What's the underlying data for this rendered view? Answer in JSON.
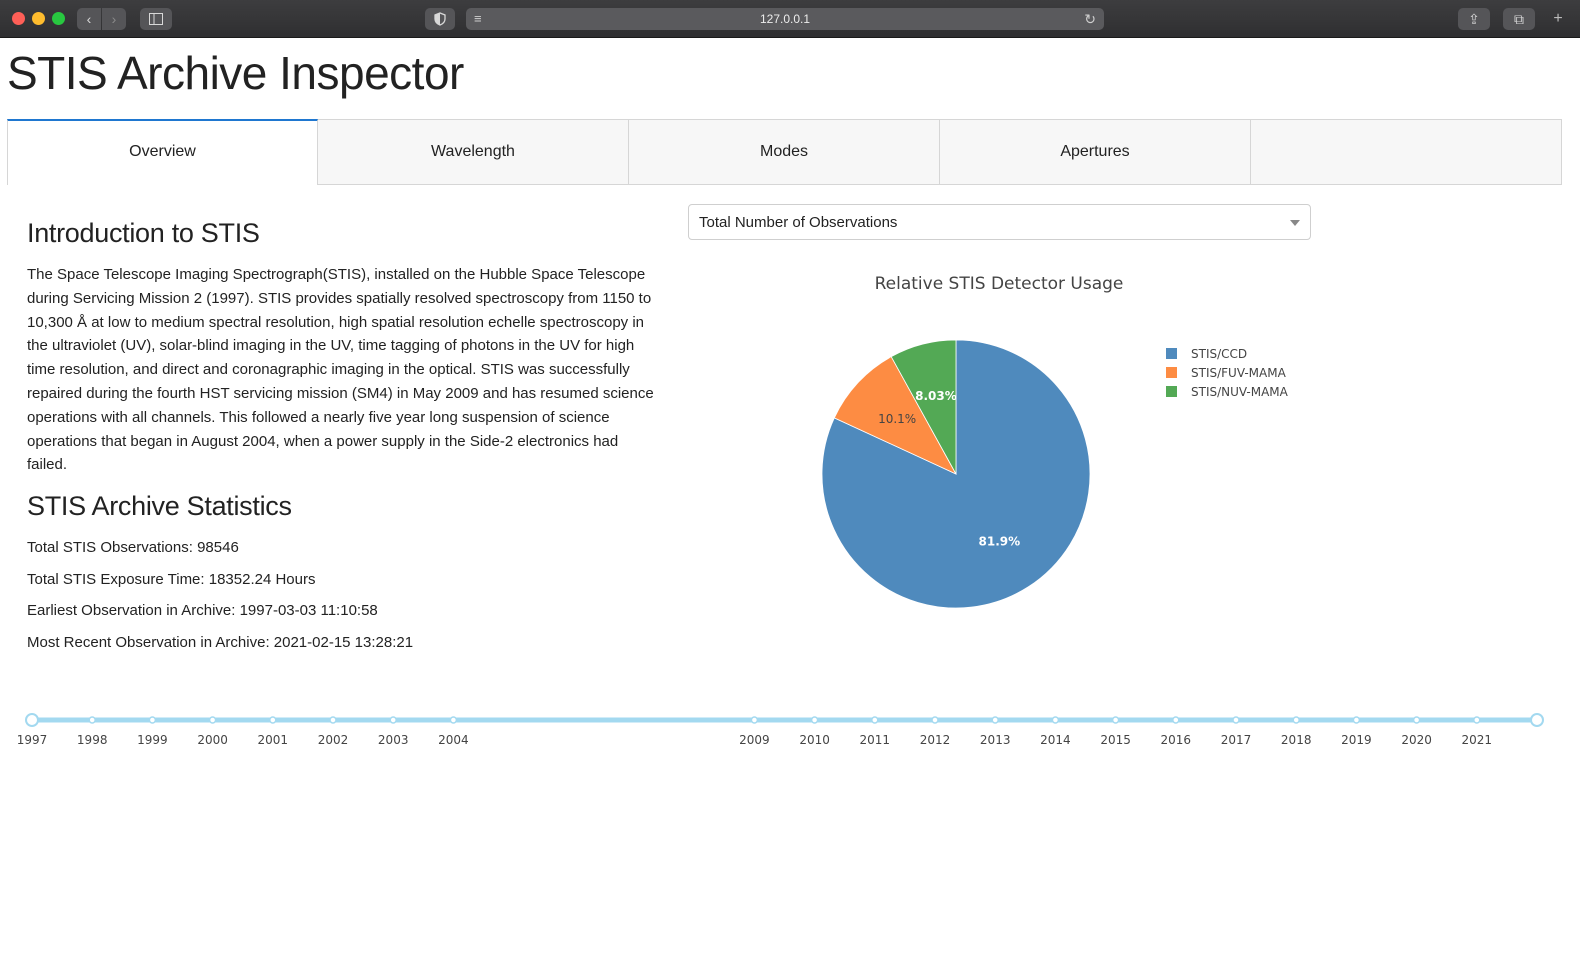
{
  "browser": {
    "url": "127.0.0.1",
    "icons": {
      "back": "chevron-left-icon",
      "forward": "chevron-right-icon",
      "sidebar": "sidebar-icon",
      "shield": "shield-icon",
      "reader": "list-icon",
      "reload": "reload-icon",
      "share": "share-icon",
      "tabs": "tabs-icon",
      "new_tab": "plus-icon"
    }
  },
  "page": {
    "title": "STIS Archive Inspector"
  },
  "tabs": [
    {
      "label": "Overview",
      "active": true
    },
    {
      "label": "Wavelength",
      "active": false
    },
    {
      "label": "Modes",
      "active": false
    },
    {
      "label": "Apertures",
      "active": false
    },
    {
      "label": "",
      "active": false
    }
  ],
  "intro": {
    "heading": "Introduction to STIS",
    "text": "The Space Telescope Imaging Spectrograph(STIS), installed on the Hubble Space Telescope during Servicing Mission 2 (1997). STIS provides spatially resolved spectroscopy from 1150 to 10,300 Å at low to medium spectral resolution, high spatial resolution echelle spectroscopy in the ultraviolet (UV), solar-blind imaging in the UV, time tagging of photons in the UV for high time resolution, and direct and coronagraphic imaging in the optical. STIS was successfully repaired during the fourth HST servicing mission (SM4) in May 2009 and has resumed science operations with all channels. This followed a nearly five year long suspension of science operations that began in August 2004, when a power supply in the Side-2 electronics had failed."
  },
  "stats": {
    "heading": "STIS Archive Statistics",
    "items": [
      "Total STIS Observations: 98546",
      "Total STIS Exposure Time: 18352.24 Hours",
      "Earliest Observation in Archive: 1997-03-03 11:10:58",
      "Most Recent Observation in Archive: 2021-02-15 13:28:21"
    ]
  },
  "dropdown": {
    "selected": "Total Number of Observations"
  },
  "chart_data": {
    "type": "pie",
    "title": "Relative STIS Detector Usage",
    "labels": [
      "STIS/CCD",
      "STIS/FUV-MAMA",
      "STIS/NUV-MAMA"
    ],
    "values": [
      81.9,
      10.1,
      8.03
    ],
    "text_labels": [
      "81.9%",
      "10.1%",
      "8.03%"
    ],
    "colors": [
      "#4f8abd",
      "#fd8c43",
      "#53a955"
    ],
    "label_colors": [
      "#ffffff",
      "#444444",
      "#ffffff"
    ],
    "legend_position": "right",
    "direction": "clockwise",
    "start_angle_deg": 90
  },
  "slider": {
    "years": [
      "1997",
      "1998",
      "1999",
      "2000",
      "2001",
      "2002",
      "2003",
      "2004",
      "2009",
      "2010",
      "2011",
      "2012",
      "2013",
      "2014",
      "2015",
      "2016",
      "2017",
      "2018",
      "2019",
      "2020",
      "2021"
    ],
    "color": "#a3d9f0"
  }
}
